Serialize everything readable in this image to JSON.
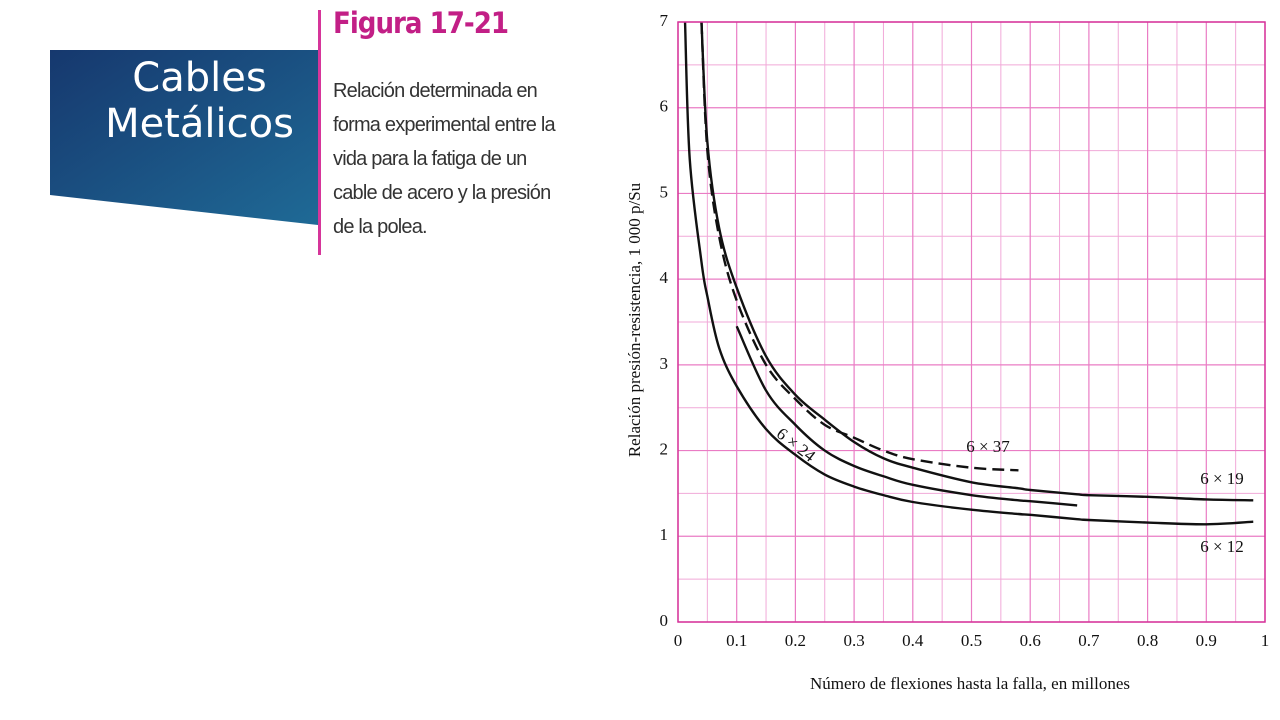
{
  "slide": {
    "title": "Cables Metálicos"
  },
  "figure": {
    "title": "Figura 17-21",
    "caption": "Relación determinada en forma experimental entre la vida para la fatiga de un cable de acero y la presión de la polea."
  },
  "chart_data": {
    "type": "line",
    "x_label": "Número de flexiones hasta la falla, en millones",
    "y_label": "Relación presión-resistencia, 1 000 p/Su",
    "x": [
      0.012,
      0.02,
      0.04,
      0.05,
      0.07,
      0.1,
      0.15,
      0.2,
      0.25,
      0.3,
      0.35,
      0.4,
      0.5,
      0.58,
      0.6,
      0.68,
      0.7,
      0.8,
      0.9,
      0.98
    ],
    "series": [
      {
        "name": "6 × 12",
        "color": "#111111",
        "style": "solid",
        "values": [
          7,
          5.4,
          4.2,
          3.8,
          3.2,
          2.75,
          2.25,
          1.95,
          1.72,
          1.58,
          1.48,
          1.4,
          1.31,
          1.26,
          1.25,
          1.2,
          1.19,
          1.16,
          1.14,
          1.17
        ]
      },
      {
        "name": "6 × 19",
        "color": "#111111",
        "style": "solid",
        "values": [
          null,
          null,
          7,
          5.6,
          4.6,
          3.9,
          3.1,
          2.65,
          2.36,
          2.1,
          1.91,
          1.8,
          1.63,
          1.56,
          1.54,
          1.49,
          1.48,
          1.46,
          1.43,
          1.42
        ]
      },
      {
        "name": "6 × 24",
        "color": "#111111",
        "style": "solid",
        "values": [
          null,
          null,
          null,
          null,
          null,
          3.45,
          2.7,
          2.3,
          2.0,
          1.82,
          1.7,
          1.6,
          1.48,
          1.42,
          1.41,
          1.36,
          null,
          null,
          null,
          null
        ]
      },
      {
        "name": "6 × 37",
        "color": "#111111",
        "style": "dashed",
        "values": [
          null,
          null,
          7,
          5.5,
          4.5,
          3.75,
          3.0,
          2.6,
          2.3,
          2.15,
          2.0,
          1.9,
          1.8,
          1.77,
          null,
          null,
          null,
          null,
          null,
          null
        ]
      }
    ],
    "xlim": [
      0,
      1
    ],
    "xticks": [
      0,
      0.1,
      0.2,
      0.3,
      0.4,
      0.5,
      0.6,
      0.7,
      0.8,
      0.9,
      1
    ],
    "ylim": [
      0,
      7
    ],
    "yticks": [
      0,
      1,
      2,
      3,
      4,
      5,
      6,
      7
    ],
    "grid": true
  }
}
